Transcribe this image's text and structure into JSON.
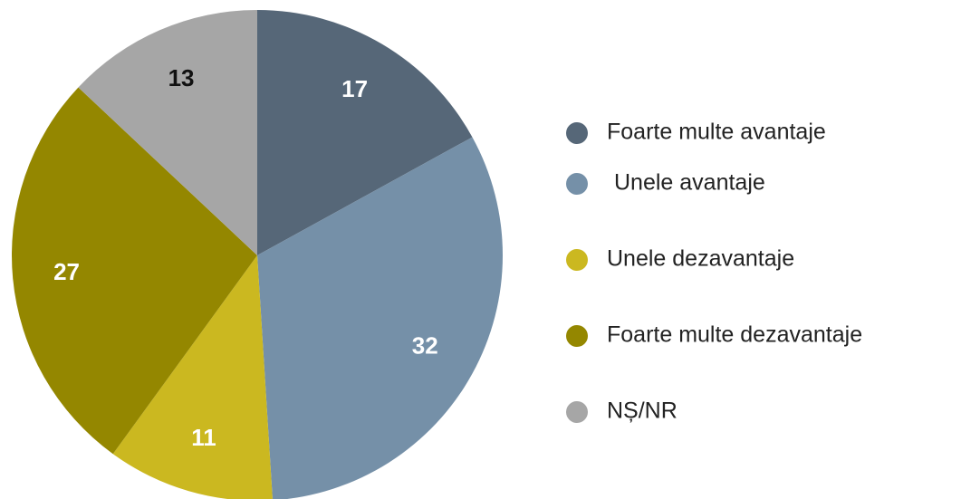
{
  "chart_data": {
    "type": "pie",
    "categories": [
      "Foarte multe avantaje",
      "Unele avantaje",
      "Unele dezavantaje",
      "Foarte multe dezavantaje",
      "NȘ/NR"
    ],
    "values": [
      17,
      32,
      11,
      27,
      13
    ],
    "colors": [
      "#566778",
      "#7590a8",
      "#cbb820",
      "#948700",
      "#a6a6a6"
    ],
    "label_colors": [
      "#ffffff",
      "#ffffff",
      "#ffffff",
      "#ffffff",
      "#111111"
    ],
    "legend": "right"
  }
}
